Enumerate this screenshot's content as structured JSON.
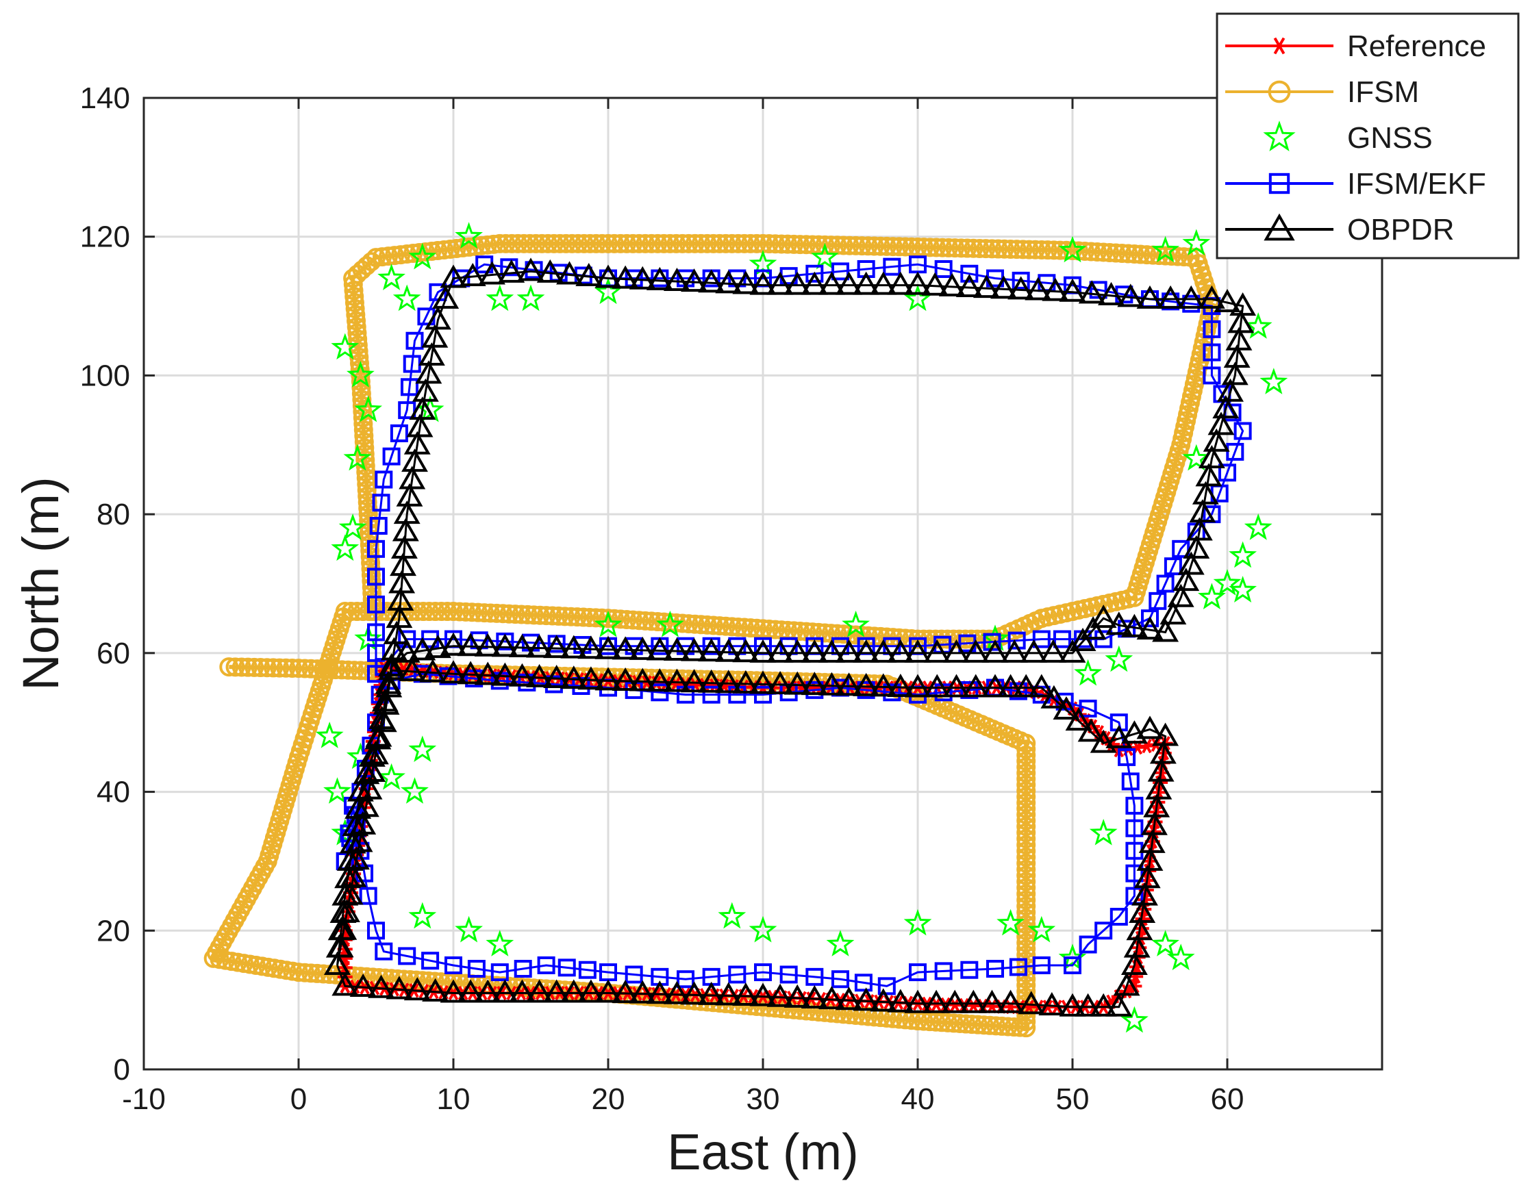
{
  "chart_data": {
    "type": "scatter",
    "title": "",
    "xlabel": "East (m)",
    "ylabel": "North (m)",
    "xlim": [
      -10,
      70
    ],
    "ylim": [
      0,
      140
    ],
    "x_ticks": [
      -10,
      0,
      10,
      20,
      30,
      40,
      50,
      60
    ],
    "y_ticks": [
      0,
      20,
      40,
      60,
      80,
      100,
      120,
      140
    ],
    "grid": true,
    "legend_position": "top-right, outside plot",
    "series": [
      {
        "name": "Reference",
        "color": "#ff0000",
        "marker": "asterisk",
        "line": true,
        "points": [
          [
            3,
            12
          ],
          [
            10,
            11
          ],
          [
            20,
            11
          ],
          [
            30,
            10.5
          ],
          [
            40,
            9.5
          ],
          [
            46,
            9
          ],
          [
            52,
            9
          ],
          [
            54,
            12
          ],
          [
            55,
            30
          ],
          [
            56,
            47
          ],
          [
            53,
            46
          ],
          [
            50,
            52
          ],
          [
            47,
            55
          ],
          [
            40,
            55
          ],
          [
            30,
            55
          ],
          [
            20,
            56
          ],
          [
            10,
            57
          ],
          [
            5.5,
            58
          ],
          [
            5,
            50
          ],
          [
            4,
            35
          ],
          [
            3,
            20
          ],
          [
            3,
            12
          ]
        ]
      },
      {
        "name": "IFSM",
        "color": "#ecb22e",
        "marker": "circle",
        "line": true,
        "points": [
          [
            -4.5,
            58
          ],
          [
            0,
            57.8
          ],
          [
            10,
            57
          ],
          [
            20,
            56.5
          ],
          [
            30,
            56
          ],
          [
            38,
            55.5
          ],
          [
            47,
            47
          ],
          [
            47,
            35
          ],
          [
            47,
            20
          ],
          [
            47,
            6
          ],
          [
            40,
            7
          ],
          [
            30,
            9
          ],
          [
            20,
            11
          ],
          [
            10,
            12.5
          ],
          [
            0,
            14
          ],
          [
            -5.5,
            16
          ],
          [
            -2,
            30
          ],
          [
            0,
            45
          ],
          [
            1,
            52
          ],
          [
            3,
            66
          ],
          [
            10,
            66
          ],
          [
            20,
            65
          ],
          [
            30,
            63.5
          ],
          [
            40,
            62
          ],
          [
            45,
            62
          ],
          [
            48,
            65
          ],
          [
            54,
            68
          ],
          [
            57,
            90
          ],
          [
            59,
            110
          ],
          [
            58,
            117
          ],
          [
            50,
            118
          ],
          [
            40,
            118.5
          ],
          [
            30,
            119
          ],
          [
            20,
            119
          ],
          [
            13,
            119
          ],
          [
            5,
            117
          ],
          [
            3.5,
            114
          ],
          [
            4,
            100
          ],
          [
            4.5,
            80
          ],
          [
            4.8,
            66
          ]
        ]
      },
      {
        "name": "GNSS",
        "color": "#00ff00",
        "marker": "pentagram",
        "line": false,
        "points": [
          [
            3,
            104
          ],
          [
            4,
            100
          ],
          [
            4.5,
            95
          ],
          [
            3.8,
            88
          ],
          [
            3.5,
            78
          ],
          [
            3,
            75
          ],
          [
            4.5,
            62
          ],
          [
            2,
            48
          ],
          [
            2.5,
            40
          ],
          [
            3,
            34
          ],
          [
            4,
            45
          ],
          [
            6,
            42
          ],
          [
            8,
            46
          ],
          [
            7.5,
            40
          ],
          [
            8,
            22
          ],
          [
            11,
            20
          ],
          [
            13,
            18
          ],
          [
            28,
            22
          ],
          [
            30,
            20
          ],
          [
            35,
            18
          ],
          [
            40,
            21
          ],
          [
            46,
            21
          ],
          [
            48,
            20
          ],
          [
            50,
            16
          ],
          [
            54,
            7
          ],
          [
            56,
            18
          ],
          [
            57,
            16
          ],
          [
            52,
            34
          ],
          [
            51,
            57
          ],
          [
            53,
            59
          ],
          [
            58,
            88
          ],
          [
            59,
            68
          ],
          [
            60,
            70
          ],
          [
            61,
            69
          ],
          [
            61,
            74
          ],
          [
            62,
            78
          ],
          [
            62,
            107
          ],
          [
            63,
            99
          ],
          [
            58,
            119
          ],
          [
            56,
            118
          ],
          [
            50,
            118
          ],
          [
            40,
            111
          ],
          [
            34,
            117
          ],
          [
            30,
            116
          ],
          [
            20,
            112
          ],
          [
            15,
            111
          ],
          [
            13,
            111
          ],
          [
            11,
            120
          ],
          [
            8,
            117
          ],
          [
            6,
            114
          ],
          [
            7,
            111
          ],
          [
            8.5,
            95
          ],
          [
            20,
            64
          ],
          [
            24,
            64
          ],
          [
            36,
            64
          ],
          [
            45,
            62
          ]
        ]
      },
      {
        "name": "IFSM/EKF",
        "color": "#0000ff",
        "marker": "square",
        "line": true,
        "points": [
          [
            3,
            30
          ],
          [
            3.5,
            38
          ],
          [
            4.5,
            25
          ],
          [
            5,
            20
          ],
          [
            5.5,
            17
          ],
          [
            10,
            15
          ],
          [
            13,
            14
          ],
          [
            16,
            15
          ],
          [
            20,
            14
          ],
          [
            25,
            13
          ],
          [
            30,
            14
          ],
          [
            35,
            13
          ],
          [
            38,
            12
          ],
          [
            40,
            14
          ],
          [
            45,
            14.5
          ],
          [
            48,
            15
          ],
          [
            50,
            15
          ],
          [
            51,
            18
          ],
          [
            53,
            22
          ],
          [
            54,
            25
          ],
          [
            54,
            38
          ],
          [
            53.5,
            45
          ],
          [
            53,
            50
          ],
          [
            51,
            52
          ],
          [
            48,
            54
          ],
          [
            45,
            55
          ],
          [
            40,
            54
          ],
          [
            35,
            55
          ],
          [
            30,
            54
          ],
          [
            25,
            54
          ],
          [
            20,
            55
          ],
          [
            13,
            56
          ],
          [
            8,
            57
          ],
          [
            6,
            56
          ],
          [
            5,
            57
          ],
          [
            5,
            63
          ],
          [
            5,
            75
          ],
          [
            5.5,
            85
          ],
          [
            7,
            95
          ],
          [
            7.5,
            105
          ],
          [
            9,
            112
          ],
          [
            12,
            116
          ],
          [
            20,
            114
          ],
          [
            30,
            114
          ],
          [
            40,
            116
          ],
          [
            45,
            114
          ],
          [
            50,
            113
          ],
          [
            55,
            111
          ],
          [
            59,
            110
          ],
          [
            59,
            100
          ],
          [
            61,
            92
          ],
          [
            59,
            80
          ],
          [
            57,
            75
          ],
          [
            56,
            70
          ],
          [
            55,
            65
          ],
          [
            52,
            62
          ],
          [
            48,
            62
          ],
          [
            40,
            61
          ],
          [
            30,
            61
          ],
          [
            20,
            61
          ],
          [
            10,
            62
          ],
          [
            7,
            62
          ],
          [
            5.5,
            58
          ],
          [
            5,
            50
          ],
          [
            4,
            40
          ],
          [
            3,
            30
          ]
        ]
      },
      {
        "name": "OBPDR",
        "color": "#000000",
        "marker": "triangle",
        "line": true,
        "points": [
          [
            2.5,
            15
          ],
          [
            3,
            12
          ],
          [
            10,
            11
          ],
          [
            20,
            11
          ],
          [
            30,
            10.5
          ],
          [
            40,
            9.5
          ],
          [
            46,
            9.5
          ],
          [
            50,
            9
          ],
          [
            53,
            9
          ],
          [
            54,
            15
          ],
          [
            55,
            30
          ],
          [
            56,
            48
          ],
          [
            55,
            49
          ],
          [
            52,
            47
          ],
          [
            48,
            55
          ],
          [
            45,
            55
          ],
          [
            40,
            55
          ],
          [
            30,
            55.5
          ],
          [
            20,
            56
          ],
          [
            10,
            57
          ],
          [
            6,
            57.5
          ],
          [
            5.5,
            50
          ],
          [
            4,
            40
          ],
          [
            3,
            25
          ],
          [
            2.5,
            15
          ],
          [
            6,
            58
          ],
          [
            6.5,
            65
          ],
          [
            7,
            80
          ],
          [
            8,
            95
          ],
          [
            9,
            108
          ],
          [
            10,
            114
          ],
          [
            15,
            115
          ],
          [
            20,
            114
          ],
          [
            30,
            113
          ],
          [
            40,
            113
          ],
          [
            50,
            112
          ],
          [
            55,
            111
          ],
          [
            59,
            111
          ],
          [
            61,
            110
          ],
          [
            60.5,
            100
          ],
          [
            59,
            88
          ],
          [
            58,
            75
          ],
          [
            57,
            68
          ],
          [
            56,
            63
          ],
          [
            53,
            64
          ],
          [
            52,
            65
          ],
          [
            50,
            60
          ],
          [
            45,
            60
          ],
          [
            40,
            60
          ],
          [
            30,
            60
          ],
          [
            20,
            60.5
          ],
          [
            10,
            61
          ],
          [
            7,
            60
          ],
          [
            6,
            58
          ]
        ]
      }
    ]
  }
}
